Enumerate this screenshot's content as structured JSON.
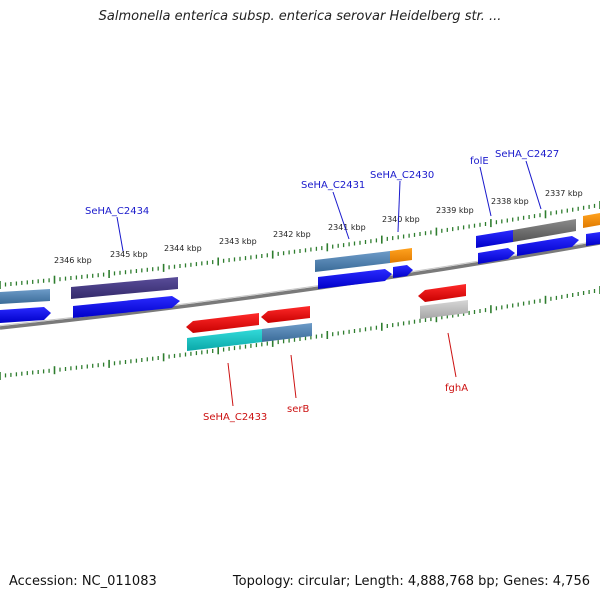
{
  "title": "Salmonella enterica subsp. enterica serovar Heidelberg str. ...",
  "footer": {
    "accession": "Accession: NC_011083",
    "summary": "Topology: circular; Length: 4,888,768 bp; Genes: 4,756"
  },
  "scale_labels": [
    "2346 kbp",
    "2345 kbp",
    "2344 kbp",
    "2343 kbp",
    "2342 kbp",
    "2341 kbp",
    "2340 kbp",
    "2339 kbp",
    "2338 kbp",
    "2337 kbp"
  ],
  "gene_labels": {
    "forward": [
      "SeHA_C2434",
      "SeHA_C2431",
      "SeHA_C2430",
      "folE",
      "SeHA_C2427"
    ],
    "reverse": [
      "SeHA_C2433",
      "serB",
      "fghA"
    ]
  },
  "colors": {
    "forward_label": "#1a1acc",
    "reverse_label": "#cc1111",
    "tick": "#2e7d2e",
    "backbone": "#808080",
    "cds_blue": "#0000ee",
    "cds_red": "#ee0000"
  }
}
